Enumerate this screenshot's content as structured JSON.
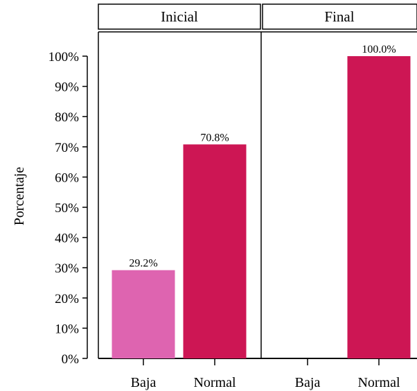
{
  "chart_data": {
    "type": "bar",
    "ylabel": "Porcentaje",
    "ylim": [
      0,
      100
    ],
    "y_ticks": [
      "0%",
      "10%",
      "20%",
      "30%",
      "40%",
      "50%",
      "60%",
      "70%",
      "80%",
      "90%",
      "100%"
    ],
    "categories": [
      "Baja",
      "Normal"
    ],
    "panels": [
      {
        "name": "Inicial",
        "values": [
          29.2,
          70.8
        ],
        "labels": [
          "29.2%",
          "70.8%"
        ]
      },
      {
        "name": "Final",
        "values": [
          0,
          100.0
        ],
        "labels": [
          "",
          "100.0%"
        ]
      }
    ],
    "colors": {
      "Baja": "#de64b0",
      "Normal": "#cd1654"
    },
    "grid": false,
    "legend": "none"
  }
}
